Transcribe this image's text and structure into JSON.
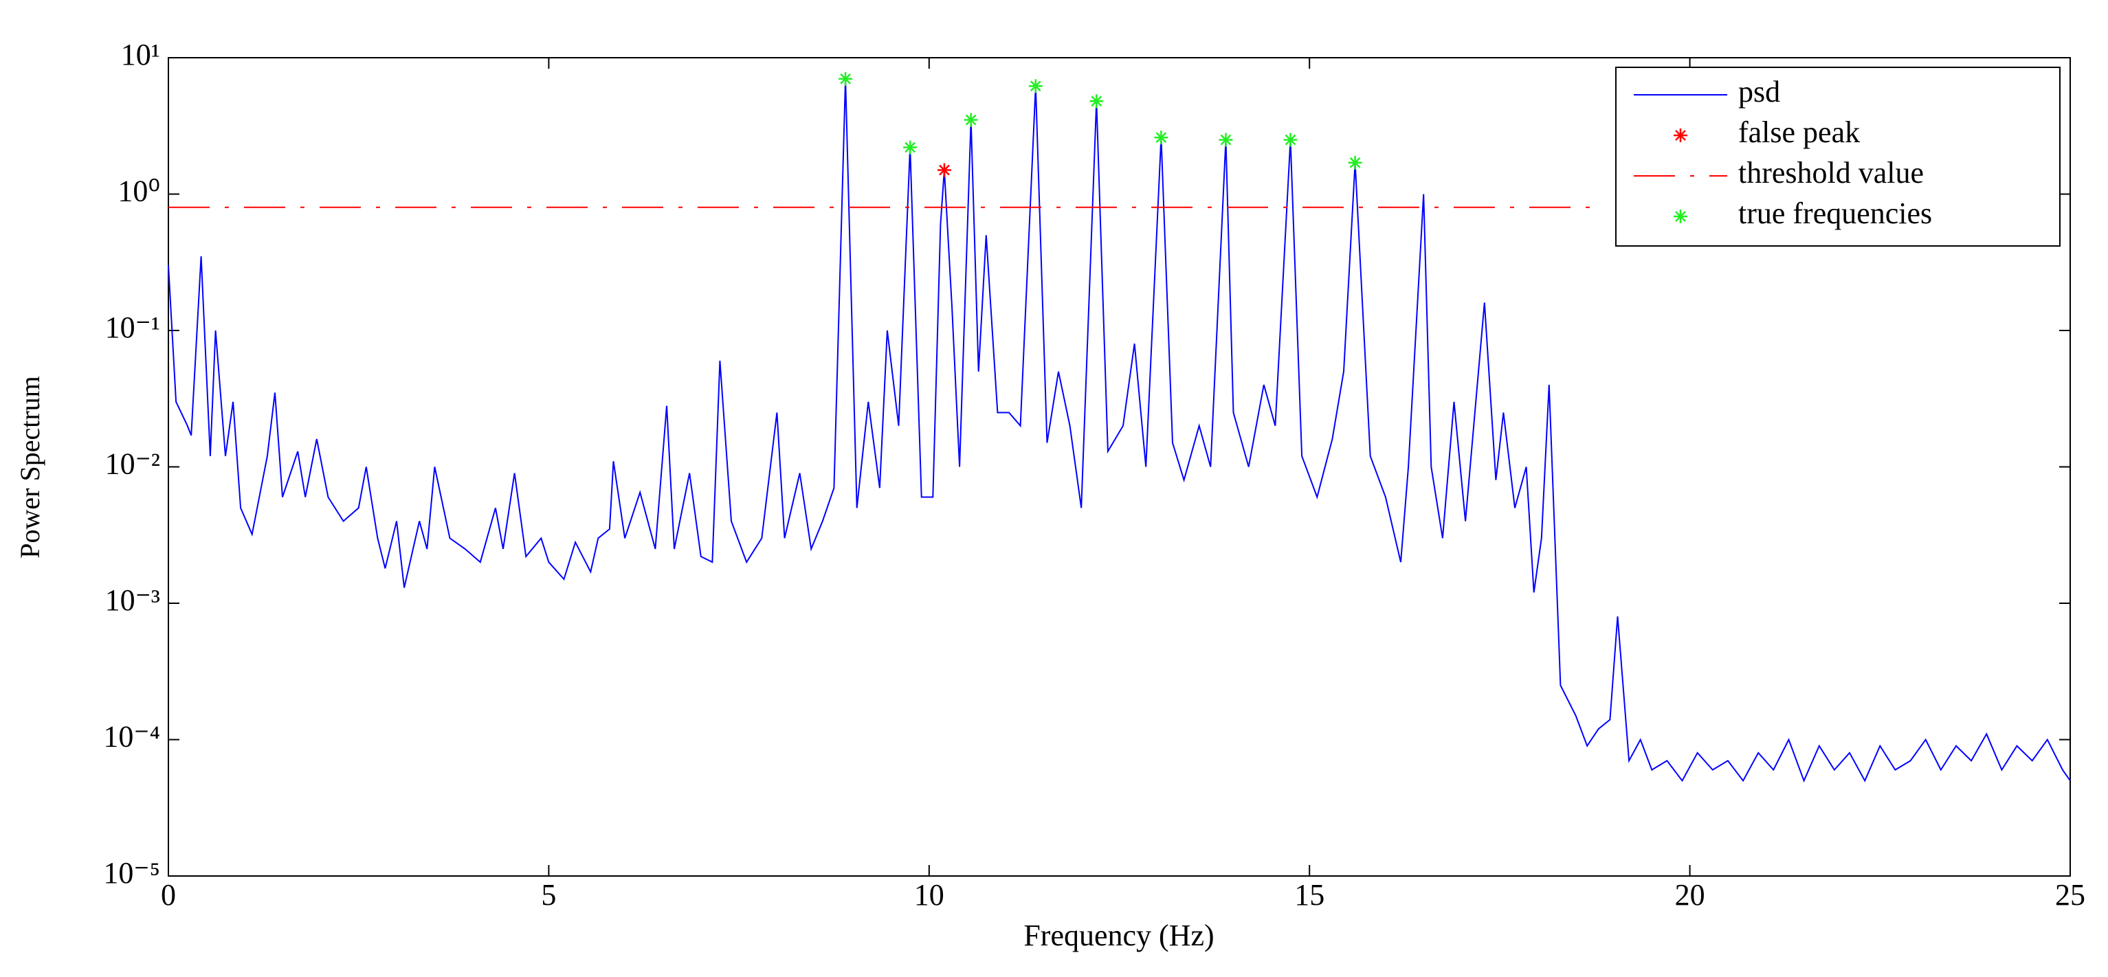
{
  "chart_data": {
    "type": "line",
    "xlabel": "Frequency (Hz)",
    "ylabel": "Power Spectrum",
    "xlim": [
      0,
      25
    ],
    "xticks": [
      0,
      5,
      10,
      15,
      20,
      25
    ],
    "ylim": [
      1e-05,
      10
    ],
    "yscale": "log",
    "yticks": [
      {
        "value": 1e-05,
        "label": "10⁻⁵"
      },
      {
        "value": 0.0001,
        "label": "10⁻⁴"
      },
      {
        "value": 0.001,
        "label": "10⁻³"
      },
      {
        "value": 0.01,
        "label": "10⁻²"
      },
      {
        "value": 0.1,
        "label": "10⁻¹"
      },
      {
        "value": 1,
        "label": "10⁰"
      },
      {
        "value": 10,
        "label": "10¹"
      }
    ],
    "legend": "upper right",
    "series": [
      {
        "name": "psd",
        "color": "#0000ff",
        "mode": "line",
        "dash": false,
        "x": [
          0,
          0.1,
          0.25,
          0.3,
          0.43,
          0.55,
          0.62,
          0.75,
          0.85,
          0.95,
          1.1,
          1.3,
          1.4,
          1.5,
          1.7,
          1.8,
          1.95,
          2.1,
          2.3,
          2.5,
          2.6,
          2.75,
          2.85,
          3.0,
          3.1,
          3.3,
          3.4,
          3.5,
          3.7,
          3.9,
          4.1,
          4.3,
          4.4,
          4.55,
          4.7,
          4.9,
          5.0,
          5.2,
          5.35,
          5.55,
          5.65,
          5.8,
          5.85,
          6.0,
          6.2,
          6.4,
          6.55,
          6.65,
          6.85,
          7.0,
          7.15,
          7.25,
          7.4,
          7.6,
          7.8,
          8.0,
          8.1,
          8.3,
          8.45,
          8.6,
          8.75,
          8.9,
          9.05,
          9.2,
          9.35,
          9.45,
          9.6,
          9.75,
          9.9,
          10.05,
          10.15,
          10.2,
          10.3,
          10.4,
          10.55,
          10.65,
          10.75,
          10.9,
          11.05,
          11.2,
          11.4,
          11.55,
          11.7,
          11.85,
          12.0,
          12.2,
          12.35,
          12.55,
          12.7,
          12.85,
          13.05,
          13.2,
          13.35,
          13.55,
          13.7,
          13.9,
          14.0,
          14.2,
          14.4,
          14.55,
          14.75,
          14.9,
          15.1,
          15.3,
          15.45,
          15.6,
          15.8,
          16.0,
          16.2,
          16.3,
          16.5,
          16.6,
          16.75,
          16.9,
          17.05,
          17.3,
          17.45,
          17.55,
          17.7,
          17.85,
          17.95,
          18.05,
          18.15,
          18.3,
          18.5,
          18.65,
          18.8,
          18.95,
          19.05,
          19.2,
          19.35,
          19.5,
          19.7,
          19.9,
          20.1,
          20.3,
          20.5,
          20.7,
          20.9,
          21.1,
          21.3,
          21.5,
          21.7,
          21.9,
          22.1,
          22.3,
          22.5,
          22.7,
          22.9,
          23.1,
          23.3,
          23.5,
          23.7,
          23.9,
          24.1,
          24.3,
          24.5,
          24.7,
          24.9,
          25
        ],
        "values": [
          0.3,
          0.03,
          0.02,
          0.017,
          0.35,
          0.012,
          0.1,
          0.012,
          0.03,
          0.005,
          0.0032,
          0.012,
          0.035,
          0.006,
          0.013,
          0.006,
          0.016,
          0.006,
          0.004,
          0.005,
          0.01,
          0.003,
          0.0018,
          0.004,
          0.0013,
          0.004,
          0.0025,
          0.01,
          0.003,
          0.0025,
          0.002,
          0.005,
          0.0025,
          0.009,
          0.0022,
          0.003,
          0.002,
          0.0015,
          0.0028,
          0.0017,
          0.003,
          0.0035,
          0.011,
          0.003,
          0.0065,
          0.0025,
          0.028,
          0.0025,
          0.009,
          0.0022,
          0.002,
          0.06,
          0.004,
          0.002,
          0.003,
          0.025,
          0.003,
          0.009,
          0.0025,
          0.004,
          0.007,
          7,
          0.005,
          0.03,
          0.007,
          0.1,
          0.02,
          2.2,
          0.006,
          0.006,
          0.6,
          1.5,
          0.15,
          0.01,
          3.5,
          0.05,
          0.5,
          0.025,
          0.025,
          0.02,
          6.2,
          0.015,
          0.05,
          0.02,
          0.005,
          4.8,
          0.013,
          0.02,
          0.08,
          0.01,
          2.6,
          0.015,
          0.008,
          0.02,
          0.01,
          2.5,
          0.025,
          0.01,
          0.04,
          0.02,
          2.5,
          0.012,
          0.006,
          0.016,
          0.05,
          1.7,
          0.012,
          0.006,
          0.002,
          0.01,
          1.0,
          0.01,
          0.003,
          0.03,
          0.004,
          0.16,
          0.008,
          0.025,
          0.005,
          0.01,
          0.0012,
          0.003,
          0.04,
          0.00025,
          0.00015,
          9e-05,
          0.00012,
          0.00014,
          0.0008,
          7e-05,
          0.0001,
          6e-05,
          7e-05,
          5e-05,
          8e-05,
          6e-05,
          7e-05,
          5e-05,
          8e-05,
          6e-05,
          0.0001,
          5e-05,
          9e-05,
          6e-05,
          8e-05,
          5e-05,
          9e-05,
          6e-05,
          7e-05,
          0.0001,
          6e-05,
          9e-05,
          7e-05,
          0.00011,
          6e-05,
          9e-05,
          7e-05,
          0.0001,
          6e-05,
          5e-05
        ]
      },
      {
        "name": "false peak",
        "color": "#ff0000",
        "mode": "marker",
        "dash": false,
        "x": [
          10.2
        ],
        "values": [
          1.5
        ]
      },
      {
        "name": "threshold value",
        "color": "#ff0000",
        "mode": "line",
        "dash": true,
        "x": [
          0,
          18.8
        ],
        "values": [
          0.8,
          0.8
        ]
      },
      {
        "name": "true frequencies",
        "color": "#22ee22",
        "mode": "marker",
        "dash": false,
        "x": [
          8.9,
          9.75,
          10.55,
          11.4,
          12.2,
          13.05,
          13.9,
          14.75,
          15.6
        ],
        "values": [
          7,
          2.2,
          3.5,
          6.2,
          4.8,
          2.6,
          2.5,
          2.5,
          1.7
        ]
      }
    ]
  }
}
